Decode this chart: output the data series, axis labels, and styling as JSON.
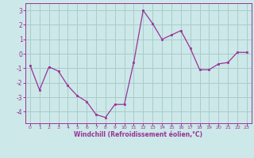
{
  "x": [
    0,
    1,
    2,
    3,
    4,
    5,
    6,
    7,
    8,
    9,
    10,
    11,
    12,
    13,
    14,
    15,
    16,
    17,
    18,
    19,
    20,
    21,
    22,
    23
  ],
  "y": [
    -0.8,
    -2.5,
    -0.9,
    -1.2,
    -2.2,
    -2.9,
    -3.3,
    -4.2,
    -4.4,
    -3.5,
    -3.5,
    -0.6,
    3.0,
    2.1,
    1.0,
    1.3,
    1.6,
    0.4,
    -1.1,
    -1.1,
    -0.7,
    -0.6,
    0.1,
    0.1
  ],
  "line_color": "#993399",
  "marker_color": "#993399",
  "bg_color": "#cce8e8",
  "grid_color": "#aacccc",
  "xlabel": "Windchill (Refroidissement éolien,°C)",
  "xlabel_color": "#993399",
  "tick_color": "#993399",
  "ylim": [
    -4.8,
    3.5
  ],
  "yticks": [
    -4,
    -3,
    -2,
    -1,
    0,
    1,
    2,
    3
  ],
  "xticks": [
    0,
    1,
    2,
    3,
    4,
    5,
    6,
    7,
    8,
    9,
    10,
    11,
    12,
    13,
    14,
    15,
    16,
    17,
    18,
    19,
    20,
    21,
    22,
    23
  ],
  "figsize": [
    3.2,
    2.0
  ],
  "dpi": 100
}
